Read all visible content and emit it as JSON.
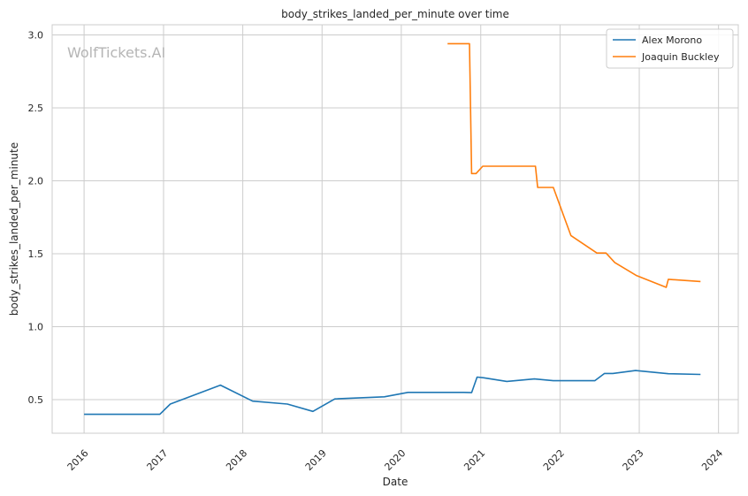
{
  "watermark": "WolfTickets.AI",
  "chart_data": {
    "type": "line",
    "title": "body_strikes_landed_per_minute over time",
    "xlabel": "Date",
    "ylabel": "body_strikes_landed_per_minute",
    "xlim": [
      "2015-08-07",
      "2024-04-01"
    ],
    "ylim": [
      0.27,
      3.07
    ],
    "x_ticks": [
      "2016",
      "2017",
      "2018",
      "2019",
      "2020",
      "2021",
      "2022",
      "2023",
      "2024"
    ],
    "y_ticks": [
      "0.5",
      "1.0",
      "1.5",
      "2.0",
      "2.5",
      "3.0"
    ],
    "grid": true,
    "legend_position": "top-right",
    "series": [
      {
        "name": "Alex Morono",
        "color": "#1f77b4",
        "points": [
          [
            "2016-01-01",
            0.4
          ],
          [
            "2016-12-15",
            0.4
          ],
          [
            "2017-02-01",
            0.47
          ],
          [
            "2017-09-20",
            0.6
          ],
          [
            "2018-02-15",
            0.49
          ],
          [
            "2018-07-25",
            0.47
          ],
          [
            "2018-11-20",
            0.42
          ],
          [
            "2019-03-01",
            0.505
          ],
          [
            "2019-10-15",
            0.52
          ],
          [
            "2020-02-01",
            0.55
          ],
          [
            "2020-10-15",
            0.55
          ],
          [
            "2020-11-20",
            0.548
          ],
          [
            "2020-12-15",
            0.655
          ],
          [
            "2021-01-15",
            0.65
          ],
          [
            "2021-05-01",
            0.625
          ],
          [
            "2021-09-05",
            0.642
          ],
          [
            "2021-12-01",
            0.63
          ],
          [
            "2022-06-10",
            0.63
          ],
          [
            "2022-07-25",
            0.68
          ],
          [
            "2022-09-01",
            0.68
          ],
          [
            "2022-12-15",
            0.7
          ],
          [
            "2023-05-15",
            0.678
          ],
          [
            "2023-10-10",
            0.673
          ]
        ]
      },
      {
        "name": "Joaquin Buckley",
        "color": "#ff7f0e",
        "points": [
          [
            "2020-08-01",
            2.94
          ],
          [
            "2020-11-10",
            2.94
          ],
          [
            "2020-11-20",
            2.05
          ],
          [
            "2020-12-10",
            2.05
          ],
          [
            "2021-01-10",
            2.1
          ],
          [
            "2021-09-10",
            2.1
          ],
          [
            "2021-09-20",
            1.955
          ],
          [
            "2021-12-01",
            1.955
          ],
          [
            "2022-02-20",
            1.625
          ],
          [
            "2022-06-20",
            1.505
          ],
          [
            "2022-08-01",
            1.505
          ],
          [
            "2022-09-10",
            1.44
          ],
          [
            "2022-12-20",
            1.35
          ],
          [
            "2023-05-05",
            1.27
          ],
          [
            "2023-05-15",
            1.325
          ],
          [
            "2023-10-10",
            1.31
          ]
        ]
      }
    ]
  }
}
